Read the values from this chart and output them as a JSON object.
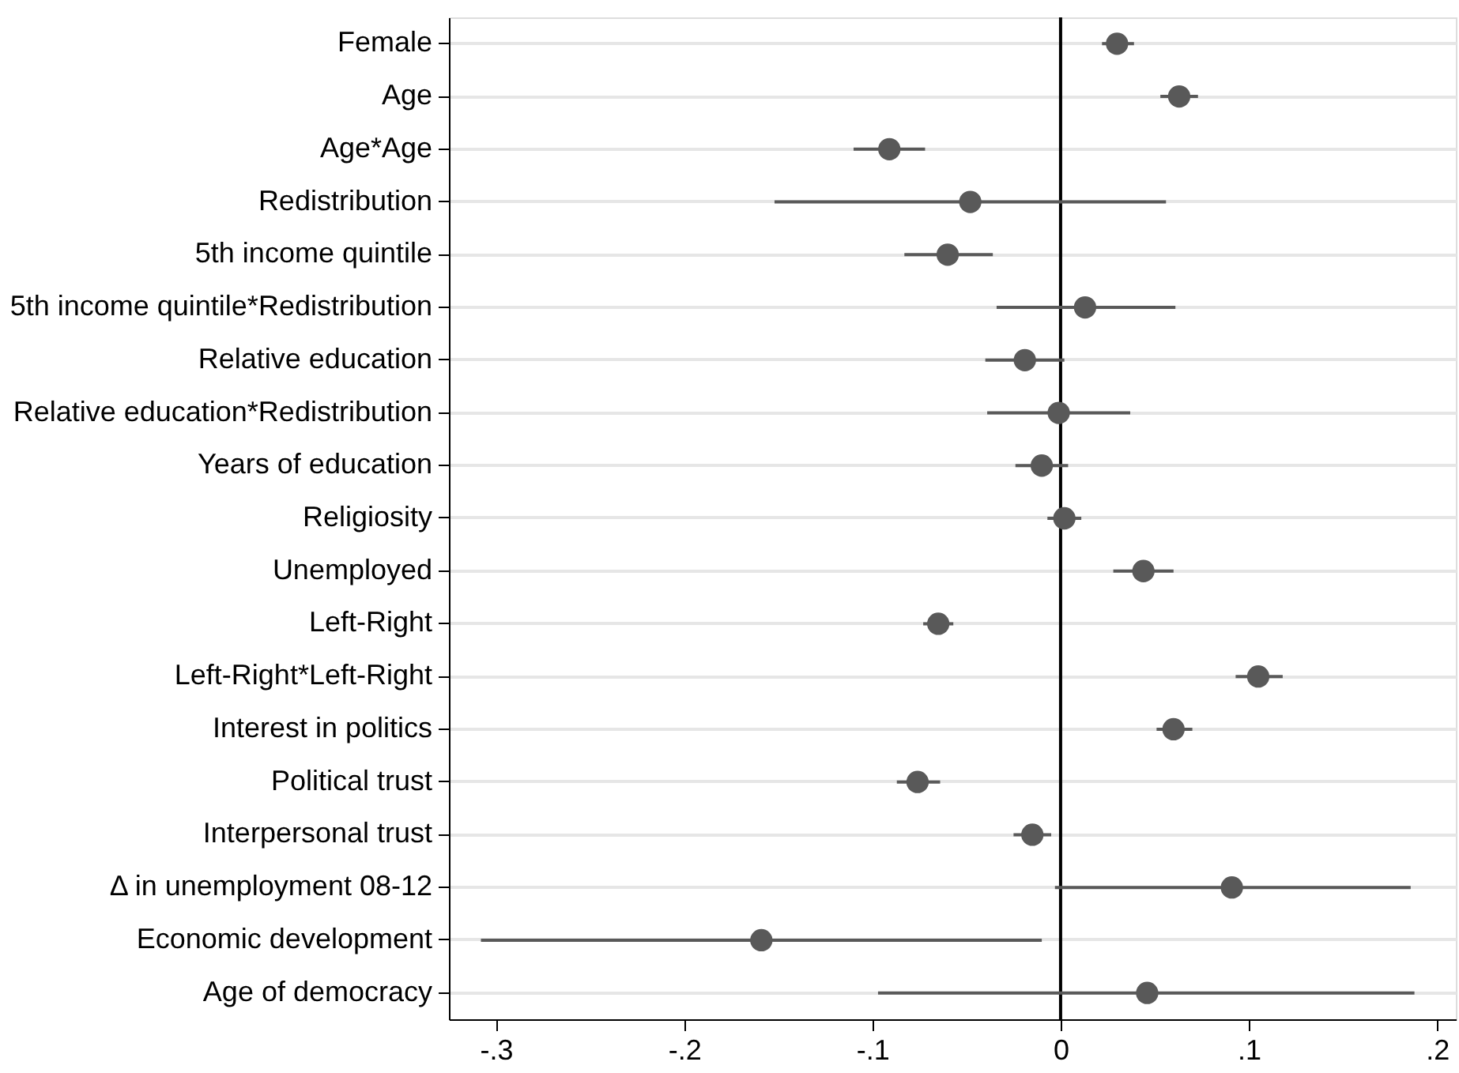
{
  "chart_data": {
    "type": "scatter",
    "orientation": "horizontal",
    "categories": [
      "Female",
      "Age",
      "Age*Age",
      "Redistribution",
      "5th income quintile",
      "5th income quintile*Redistribution",
      "Relative education",
      "Relative education*Redistribution",
      "Years of education",
      "Religiosity",
      "Unemployed",
      "Left-Right",
      "Left-Right*Left-Right",
      "Interest in politics",
      "Political trust",
      "Interpersonal trust",
      "Δ in unemployment 08-12",
      "Economic development",
      "Age of democracy"
    ],
    "series": [
      {
        "color": "#595959",
        "values": [
          0.03,
          0.063,
          -0.091,
          -0.048,
          -0.06,
          0.013,
          -0.019,
          -0.001,
          -0.01,
          0.002,
          0.044,
          -0.065,
          0.105,
          0.06,
          -0.076,
          -0.015,
          0.091,
          -0.159,
          0.046
        ],
        "errors": [
          [
            0.022,
            0.039
          ],
          [
            0.053,
            0.073
          ],
          [
            -0.11,
            -0.072
          ],
          [
            -0.152,
            0.056
          ],
          [
            -0.083,
            -0.036
          ],
          [
            -0.034,
            0.061
          ],
          [
            -0.04,
            0.002
          ],
          [
            -0.039,
            0.037
          ],
          [
            -0.024,
            0.004
          ],
          [
            -0.007,
            0.011
          ],
          [
            0.028,
            0.06
          ],
          [
            -0.073,
            -0.057
          ],
          [
            0.093,
            0.118
          ],
          [
            0.051,
            0.07
          ],
          [
            -0.087,
            -0.064
          ],
          [
            -0.025,
            -0.005
          ],
          [
            -0.003,
            0.186
          ],
          [
            -0.308,
            -0.01
          ],
          [
            -0.097,
            0.188
          ]
        ]
      }
    ],
    "xlim": [
      -0.325,
      0.21
    ],
    "xticks": [
      {
        "value": -0.3,
        "label": "-.3"
      },
      {
        "value": -0.2,
        "label": "-.2"
      },
      {
        "value": -0.1,
        "label": "-.1"
      },
      0,
      {
        "value": 0.1,
        "label": ".1"
      },
      {
        "value": 0.2,
        "label": ".2"
      }
    ],
    "ref_lines": [
      {
        "axis": "x",
        "value": 0,
        "color": "#000000"
      }
    ],
    "grid": "y",
    "marker": "circle"
  }
}
